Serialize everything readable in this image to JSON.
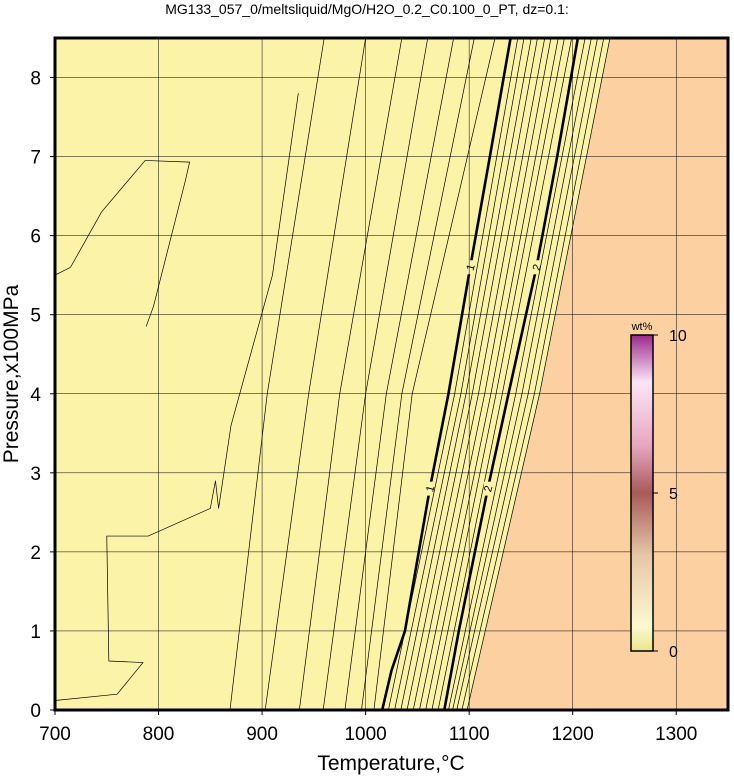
{
  "chart_data": {
    "type": "contour",
    "title": "MG133_057_0/meltsliquid/MgO/H2O_0.2_C0.100_0_PT, dz=0.1:",
    "x_label": "Temperature,°C",
    "y_label": "Pressure,x100MPa",
    "xlim": [
      700,
      1350
    ],
    "ylim": [
      0,
      8.5
    ],
    "xticks": [
      700,
      800,
      900,
      1000,
      1100,
      1200,
      1300
    ],
    "yticks": [
      0,
      1,
      2,
      3,
      4,
      5,
      6,
      7,
      8
    ],
    "grid": true,
    "low_color": "#fbf3a8",
    "high_color": "#fdd0a2",
    "contours": [
      {
        "level": 0.1,
        "T": [
          700,
          715,
          745,
          787,
          790,
          830,
          826,
          795,
          788
        ],
        "P": [
          5.5,
          5.6,
          6.3,
          6.95,
          6.95,
          6.93,
          6.7,
          5.1,
          4.85
        ]
      },
      {
        "level": 0.2,
        "T": [
          700,
          760,
          785,
          752,
          750,
          790,
          850,
          855,
          858,
          870,
          910,
          935
        ],
        "P": [
          0.12,
          0.2,
          0.6,
          0.62,
          2.2,
          2.2,
          2.55,
          2.9,
          2.55,
          3.6,
          5.5,
          7.8
        ]
      },
      {
        "level": 0.3,
        "T": [
          869,
          905,
          960
        ],
        "P": [
          0,
          4,
          8.5
        ]
      },
      {
        "level": 0.4,
        "T": [
          903,
          945,
          1000
        ],
        "P": [
          0,
          4,
          8.5
        ]
      },
      {
        "level": 0.5,
        "T": [
          936,
          975,
          1035
        ],
        "P": [
          0,
          4,
          8.5
        ]
      },
      {
        "level": 0.6,
        "T": [
          959,
          1000,
          1060
        ],
        "P": [
          0,
          4,
          8.5
        ]
      },
      {
        "level": 0.7,
        "T": [
          980,
          1020,
          1085
        ],
        "P": [
          0,
          4,
          8.5
        ]
      },
      {
        "level": 0.8,
        "T": [
          996,
          1035,
          1105
        ],
        "P": [
          0,
          4,
          8.5
        ]
      },
      {
        "level": 0.9,
        "T": [
          1008,
          1045,
          1125
        ],
        "P": [
          0,
          4,
          8.5
        ]
      },
      {
        "level": 1,
        "labeled": true,
        "T": [
          1016,
          1025,
          1038,
          1062,
          1080,
          1101,
          1120,
          1140
        ],
        "P": [
          0,
          0.5,
          1,
          2.8,
          4,
          5.6,
          7,
          8.5
        ]
      },
      {
        "level": 1.1,
        "T": [
          1022,
          1086,
          1147
        ],
        "P": [
          0,
          4,
          8.5
        ]
      },
      {
        "level": 1.2,
        "T": [
          1028,
          1092,
          1153
        ],
        "P": [
          0,
          4,
          8.5
        ]
      },
      {
        "level": 1.3,
        "T": [
          1034,
          1097,
          1160
        ],
        "P": [
          0,
          4,
          8.5
        ]
      },
      {
        "level": 1.4,
        "T": [
          1040,
          1103,
          1166
        ],
        "P": [
          0,
          4,
          8.5
        ]
      },
      {
        "level": 1.5,
        "T": [
          1046,
          1109,
          1173
        ],
        "P": [
          0,
          4,
          8.5
        ]
      },
      {
        "level": 1.6,
        "T": [
          1052,
          1115,
          1179
        ],
        "P": [
          0,
          4,
          8.5
        ]
      },
      {
        "level": 1.7,
        "T": [
          1058,
          1121,
          1186
        ],
        "P": [
          0,
          4,
          8.5
        ]
      },
      {
        "level": 1.8,
        "T": [
          1064,
          1126,
          1192
        ],
        "P": [
          0,
          4,
          8.5
        ]
      },
      {
        "level": 1.9,
        "T": [
          1070,
          1132,
          1199
        ],
        "P": [
          0,
          4,
          8.5
        ]
      },
      {
        "level": 2,
        "labeled": true,
        "T": [
          1076,
          1090,
          1118,
          1138,
          1165,
          1185,
          1205
        ],
        "P": [
          0,
          1,
          2.8,
          4,
          5.6,
          7,
          8.5
        ]
      },
      {
        "level": 2.1,
        "T": [
          1080,
          1145,
          1212
        ],
        "P": [
          0,
          4,
          8.5
        ]
      },
      {
        "level": 2.2,
        "T": [
          1084,
          1151,
          1218
        ],
        "P": [
          0,
          4,
          8.5
        ]
      },
      {
        "level": 2.3,
        "T": [
          1088,
          1157,
          1224
        ],
        "P": [
          0,
          4,
          8.5
        ]
      },
      {
        "level": 2.4,
        "T": [
          1093,
          1163,
          1230
        ],
        "P": [
          0,
          4,
          8.5
        ]
      },
      {
        "level": 2.5,
        "T": [
          1098,
          1168,
          1236
        ],
        "P": [
          0,
          4,
          8.5
        ]
      }
    ],
    "colorbar": {
      "label": "wt%",
      "lim": [
        0,
        10
      ],
      "ticks": [
        0,
        5,
        10
      ]
    }
  }
}
